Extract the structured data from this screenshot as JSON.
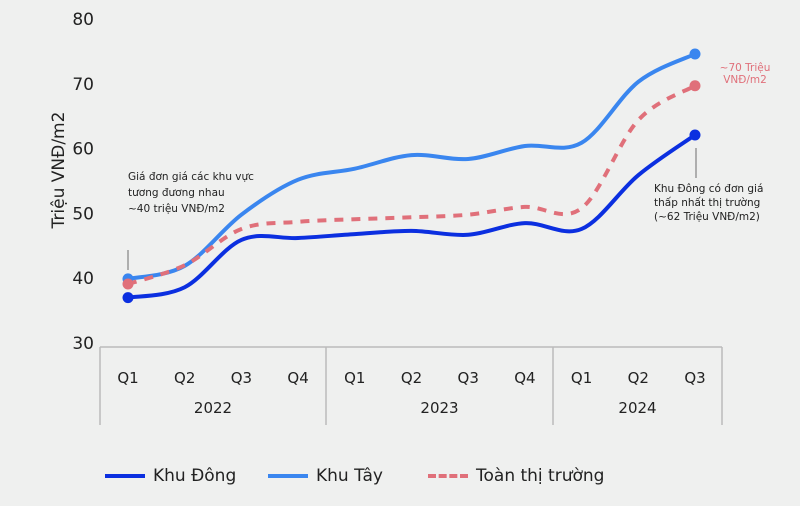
{
  "chart_data": {
    "type": "line",
    "ylabel": "Triệu VNĐ/m2",
    "ylim": [
      30,
      80
    ],
    "yticks": [
      "30",
      "40",
      "50",
      "60",
      "70",
      "80"
    ],
    "categories": [
      "Q1",
      "Q2",
      "Q3",
      "Q4",
      "Q1",
      "Q2",
      "Q3",
      "Q4",
      "Q1",
      "Q2",
      "Q3"
    ],
    "groups": [
      {
        "label": "2022",
        "count": 4
      },
      {
        "label": "2023",
        "count": 4
      },
      {
        "label": "2024",
        "count": 3
      }
    ],
    "series": [
      {
        "name": "Khu Đông",
        "color": "#0b2fe0",
        "dash": false,
        "values": [
          37.0,
          38.6,
          45.9,
          46.2,
          46.8,
          47.3,
          46.7,
          48.5,
          47.6,
          55.9,
          62.1
        ]
      },
      {
        "name": "Khu Tây",
        "color": "#3a86ef",
        "dash": false,
        "values": [
          39.9,
          41.9,
          49.8,
          55.2,
          56.9,
          59.0,
          58.4,
          60.4,
          60.9,
          70.3,
          74.6
        ]
      },
      {
        "name": "Toàn thị trường",
        "color": "#e0707a",
        "dash": true,
        "values": [
          39.1,
          42.0,
          47.6,
          48.7,
          49.1,
          49.4,
          49.8,
          51.0,
          50.8,
          64.4,
          69.7
        ]
      }
    ],
    "annotations": [
      {
        "lines": [
          "Giá đơn giá các khu vực",
          "tương đương nhau",
          "~40 triệu VNĐ/m2"
        ]
      },
      {
        "lines": [
          "~70 Triệu",
          "VNĐ/m2"
        ]
      },
      {
        "lines": [
          "Khu Đông có đơn giá",
          "thấp nhất thị trường",
          "(~62 Triệu VNĐ/m2)"
        ]
      }
    ]
  }
}
